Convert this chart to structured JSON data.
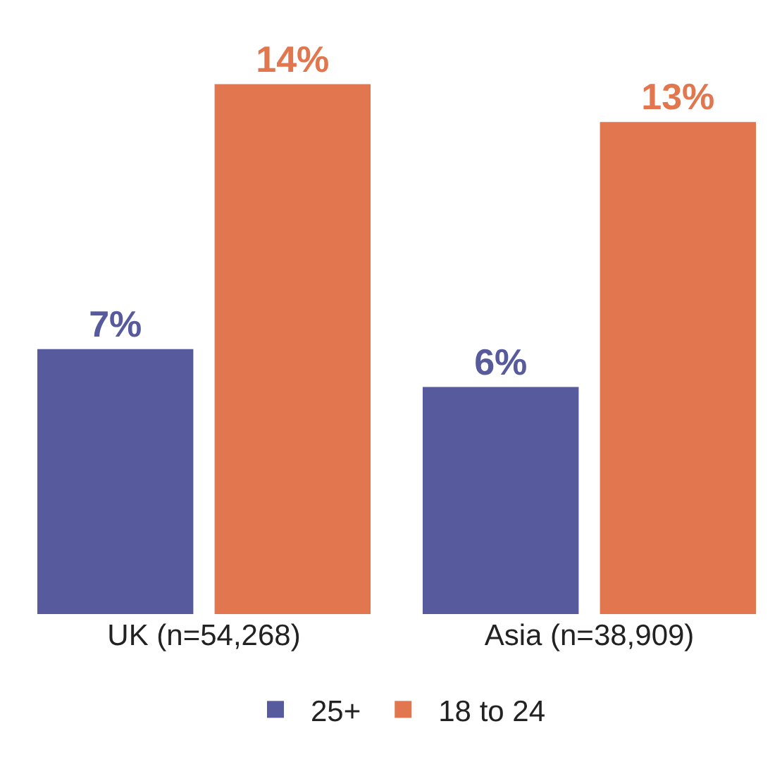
{
  "chart_data": {
    "type": "bar",
    "categories": [
      "UK (n=54,268)",
      "Asia (n=38,909)"
    ],
    "series": [
      {
        "name": "25+",
        "color": "#575b9e",
        "values": [
          7,
          6
        ],
        "value_labels": [
          "7%",
          "6%"
        ]
      },
      {
        "name": "18 to 24",
        "color": "#e2764e",
        "values": [
          14,
          13
        ],
        "value_labels": [
          "14%",
          "13%"
        ]
      }
    ],
    "legend": "bottom",
    "grid": false
  }
}
